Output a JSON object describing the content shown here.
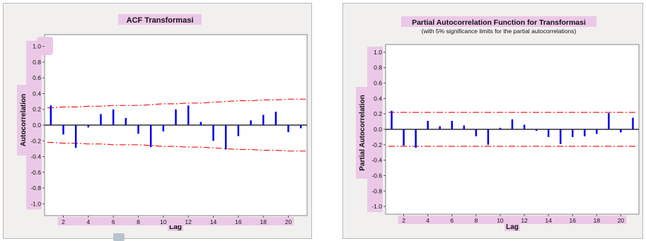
{
  "colors": {
    "spike": "#0000ee",
    "limit": "#ee1c1c",
    "zero_line": "#303030",
    "highlight": "#ecc8e8",
    "panel_bg": "#f2f0ee",
    "plot_bg": "#ffffff"
  },
  "chart_data": [
    {
      "type": "bar",
      "title": "ACF Transformasi",
      "subtitle": "",
      "xlabel": "Lag",
      "ylabel": "Autocorrelation",
      "xlim": [
        0.5,
        21.5
      ],
      "ylim": [
        -1.15,
        1.15
      ],
      "x_ticks": [
        2,
        4,
        6,
        8,
        10,
        12,
        14,
        16,
        18,
        20
      ],
      "y_ticks": [
        1.0,
        0.8,
        0.6,
        0.4,
        0.2,
        0.0,
        -0.2,
        -0.4,
        -0.6,
        -0.8,
        -1.0
      ],
      "y_tick_labels": [
        "1.0",
        "0.8",
        "0.6",
        "0.4",
        "0.2",
        "0.0",
        "-0.2",
        "-0.4",
        "-0.6",
        "-0.8",
        "-1.0"
      ],
      "grid": false,
      "lags": [
        1,
        2,
        3,
        4,
        5,
        6,
        7,
        8,
        9,
        10,
        11,
        12,
        13,
        14,
        15,
        16,
        17,
        18,
        19,
        20,
        21
      ],
      "values": [
        0.25,
        -0.12,
        -0.29,
        -0.03,
        0.14,
        0.2,
        0.09,
        -0.11,
        -0.28,
        -0.08,
        0.2,
        0.25,
        0.04,
        -0.2,
        -0.31,
        -0.14,
        0.06,
        0.13,
        0.17,
        -0.09,
        -0.04
      ],
      "limit_upper": [
        0.22,
        0.23,
        0.23,
        0.24,
        0.24,
        0.25,
        0.25,
        0.25,
        0.26,
        0.27,
        0.27,
        0.28,
        0.28,
        0.29,
        0.3,
        0.31,
        0.31,
        0.32,
        0.32,
        0.33,
        0.33
      ],
      "limit_lower": [
        -0.22,
        -0.23,
        -0.23,
        -0.24,
        -0.24,
        -0.25,
        -0.25,
        -0.25,
        -0.26,
        -0.27,
        -0.27,
        -0.28,
        -0.28,
        -0.29,
        -0.3,
        -0.31,
        -0.31,
        -0.32,
        -0.32,
        -0.33,
        -0.33
      ]
    },
    {
      "type": "bar",
      "title": "Partial Autocorrelation Function for Transformasi",
      "subtitle": "(with 5% significance limits for the partial autocorrelations)",
      "xlabel": "Lag",
      "ylabel": "Partial Autocorrelation",
      "xlim": [
        0.5,
        21.5
      ],
      "ylim": [
        -1.1,
        1.1
      ],
      "x_ticks": [
        2,
        4,
        6,
        8,
        10,
        12,
        14,
        16,
        18,
        20
      ],
      "y_ticks": [
        1.0,
        0.8,
        0.6,
        0.4,
        0.2,
        0.0,
        -0.2,
        -0.4,
        -0.6,
        -0.8,
        -1.0
      ],
      "y_tick_labels": [
        "1.0",
        "0.8",
        "0.6",
        "0.4",
        "0.2",
        "0.0",
        "-0.2",
        "-0.4",
        "-0.6",
        "-0.8",
        "-1.0"
      ],
      "grid": false,
      "lags": [
        1,
        2,
        3,
        4,
        5,
        6,
        7,
        8,
        9,
        10,
        11,
        12,
        13,
        14,
        15,
        16,
        17,
        18,
        19,
        20,
        21
      ],
      "values": [
        0.24,
        -0.21,
        -0.24,
        0.11,
        0.04,
        0.11,
        0.05,
        -0.09,
        -0.2,
        0.02,
        0.13,
        0.06,
        -0.02,
        -0.1,
        -0.19,
        -0.1,
        -0.09,
        -0.06,
        0.21,
        -0.04,
        0.15
      ],
      "limit_upper": 0.22,
      "limit_lower": -0.22
    }
  ]
}
